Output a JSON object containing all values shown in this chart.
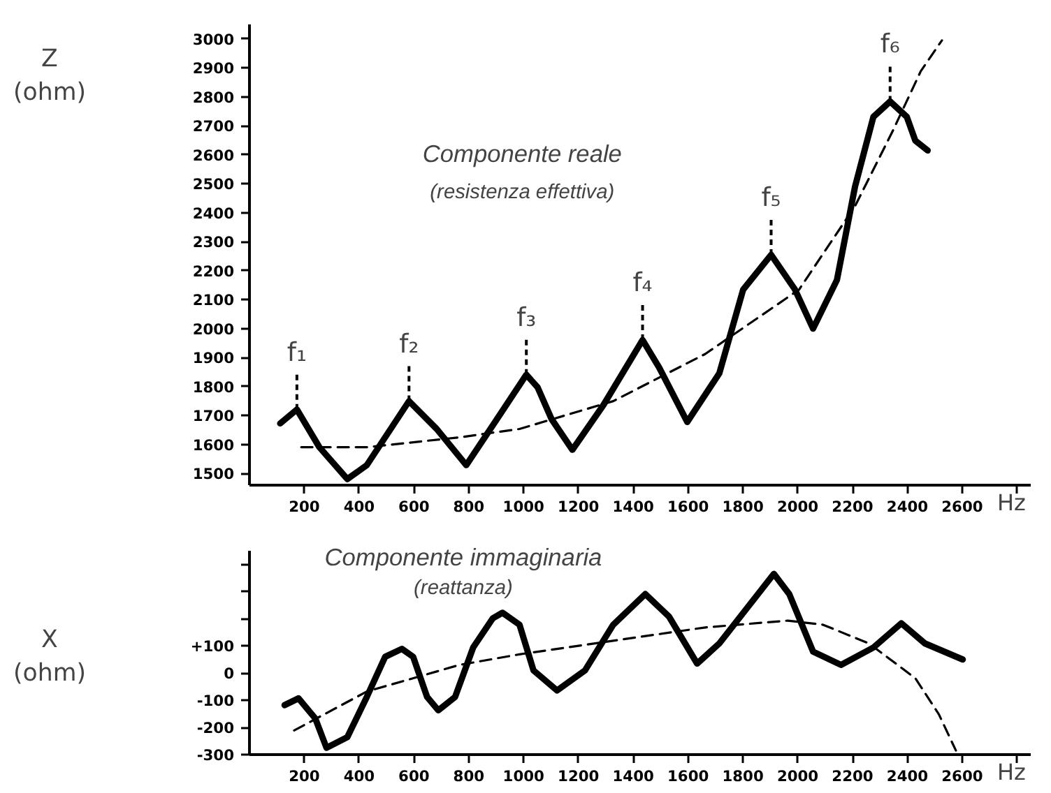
{
  "chart_data": [
    {
      "type": "line",
      "title": "Componente reale",
      "subtitle": "(resistenza effettiva)",
      "ylabel": "Z\n(ohm)",
      "xlabel": "Hz",
      "xlim": [
        0,
        2850
      ],
      "ylim": [
        1460,
        3050
      ],
      "xticks": [
        200,
        400,
        600,
        800,
        1000,
        1200,
        1400,
        1600,
        1800,
        2000,
        2200,
        2400,
        2600,
        {
          "value": 2800,
          "label": null
        }
      ],
      "yticks": [
        1500,
        1600,
        1700,
        1800,
        1900,
        2000,
        2100,
        2200,
        2300,
        2400,
        2500,
        2600,
        2700,
        2800,
        2900,
        3000
      ],
      "grid": false,
      "marker": "none",
      "series": [
        {
          "color": "#000000",
          "line_style": "solid",
          "x": [
            112,
            173,
            255,
            357,
            428,
            582,
            683,
            791,
            903,
            1010,
            1051,
            1102,
            1178,
            1291,
            1434,
            1495,
            1597,
            1714,
            1801,
            1903,
            1990,
            2056,
            2143,
            2209,
            2276,
            2337,
            2398,
            2429,
            2474
          ],
          "values": [
            1673,
            1721,
            1591,
            1481,
            1529,
            1750,
            1654,
            1529,
            1688,
            1841,
            1798,
            1688,
            1582,
            1736,
            1961,
            1865,
            1678,
            1846,
            2135,
            2255,
            2135,
            2000,
            2168,
            2490,
            2731,
            2784,
            2731,
            2649,
            2615
          ]
        },
        {
          "color": "#000000",
          "line_style": "dashed",
          "x": [
            189,
            428,
            766,
            985,
            1327,
            1663,
            2005,
            2209,
            2347,
            2449,
            2526
          ],
          "values": [
            1591,
            1591,
            1625,
            1654,
            1750,
            1913,
            2135,
            2423,
            2683,
            2889,
            2995
          ]
        }
      ],
      "annotations": [
        {
          "text": "f₁",
          "x": 173,
          "y": 1721
        },
        {
          "text": "f₂",
          "x": 582,
          "y": 1750
        },
        {
          "text": "f₃",
          "x": 1010,
          "y": 1841
        },
        {
          "text": "f₄",
          "x": 1434,
          "y": 1961
        },
        {
          "text": "f₅",
          "x": 1903,
          "y": 2255
        },
        {
          "text": "f₆",
          "x": 2337,
          "y": 2784
        }
      ]
    },
    {
      "type": "line",
      "title": "Componente immaginaria",
      "subtitle": "(reattanza)",
      "ylabel": "X\n(ohm)",
      "xlabel": "Hz",
      "xlim": [
        0,
        2850
      ],
      "ylim": [
        -300,
        450
      ],
      "xticks": [
        200,
        400,
        600,
        800,
        1000,
        1200,
        1400,
        1600,
        1800,
        2000,
        2200,
        2400,
        2600,
        {
          "value": 2800,
          "label": null
        }
      ],
      "yticks": [
        -300,
        -200,
        -100,
        0,
        {
          "value": 100,
          "label": "+100"
        },
        {
          "value": 200,
          "label": null
        },
        {
          "value": 300,
          "label": null
        },
        {
          "value": 400,
          "label": null
        }
      ],
      "grid": false,
      "marker": "none",
      "series": [
        {
          "color": "#000000",
          "line_style": "solid",
          "x": [
            128,
            179,
            240,
            281,
            357,
            428,
            495,
            556,
            597,
            648,
            689,
            750,
            816,
            888,
            923,
            985,
            1036,
            1122,
            1224,
            1327,
            1444,
            1531,
            1633,
            1714,
            1913,
            1969,
            2056,
            2158,
            2276,
            2378,
            2464,
            2602
          ],
          "values": [
            -118,
            -93,
            -167,
            -275,
            -236,
            -88,
            60,
            89,
            60,
            -88,
            -137,
            -88,
            94,
            202,
            222,
            178,
            10,
            -64,
            10,
            178,
            291,
            207,
            35,
            109,
            365,
            291,
            79,
            30,
            94,
            183,
            109,
            50
          ]
        },
        {
          "color": "#000000",
          "line_style": "dashed",
          "x": [
            163,
            428,
            766,
            985,
            1327,
            1663,
            1964,
            2092,
            2260,
            2429,
            2515,
            2577
          ],
          "values": [
            -211,
            -68,
            30,
            69,
            119,
            168,
            193,
            178,
            109,
            -19,
            -152,
            -285
          ]
        }
      ]
    }
  ]
}
